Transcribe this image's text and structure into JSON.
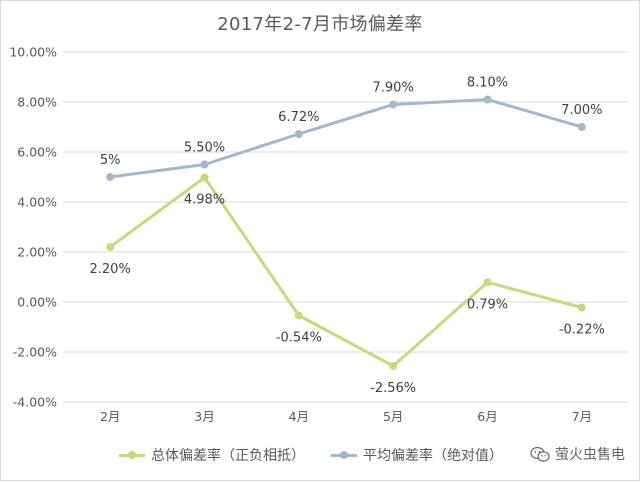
{
  "chart_data": {
    "type": "line",
    "title": "2017年2-7月市场偏差率",
    "categories": [
      "2月",
      "3月",
      "4月",
      "5月",
      "6月",
      "7月"
    ],
    "ylim": [
      -4,
      10
    ],
    "ytick_labels": [
      "-4.00%",
      "-2.00%",
      "0.00%",
      "2.00%",
      "4.00%",
      "6.00%",
      "8.00%",
      "10.00%"
    ],
    "ytick_values": [
      -4,
      -2,
      0,
      2,
      4,
      6,
      8,
      10
    ],
    "grid": true,
    "legend_position": "bottom",
    "series": [
      {
        "name": "总体偏差率（正负相抵）",
        "color": "#c9d97a",
        "values": [
          2.2,
          4.98,
          -0.54,
          -2.56,
          0.79,
          -0.22
        ],
        "labels": [
          "2.20%",
          "4.98%",
          "-0.54%",
          "-2.56%",
          "0.79%",
          "-0.22%"
        ],
        "label_side": "below"
      },
      {
        "name": "平均偏差率（绝对值）",
        "color": "#a3b8cc",
        "values": [
          5.0,
          5.5,
          6.72,
          7.9,
          8.1,
          7.0
        ],
        "labels": [
          "5%",
          "5.50%",
          "6.72%",
          "7.90%",
          "8.10%",
          "7.00%"
        ],
        "label_side": "above"
      }
    ]
  },
  "watermark": {
    "text": "萤火虫售电",
    "icon": "wechat-icon"
  }
}
